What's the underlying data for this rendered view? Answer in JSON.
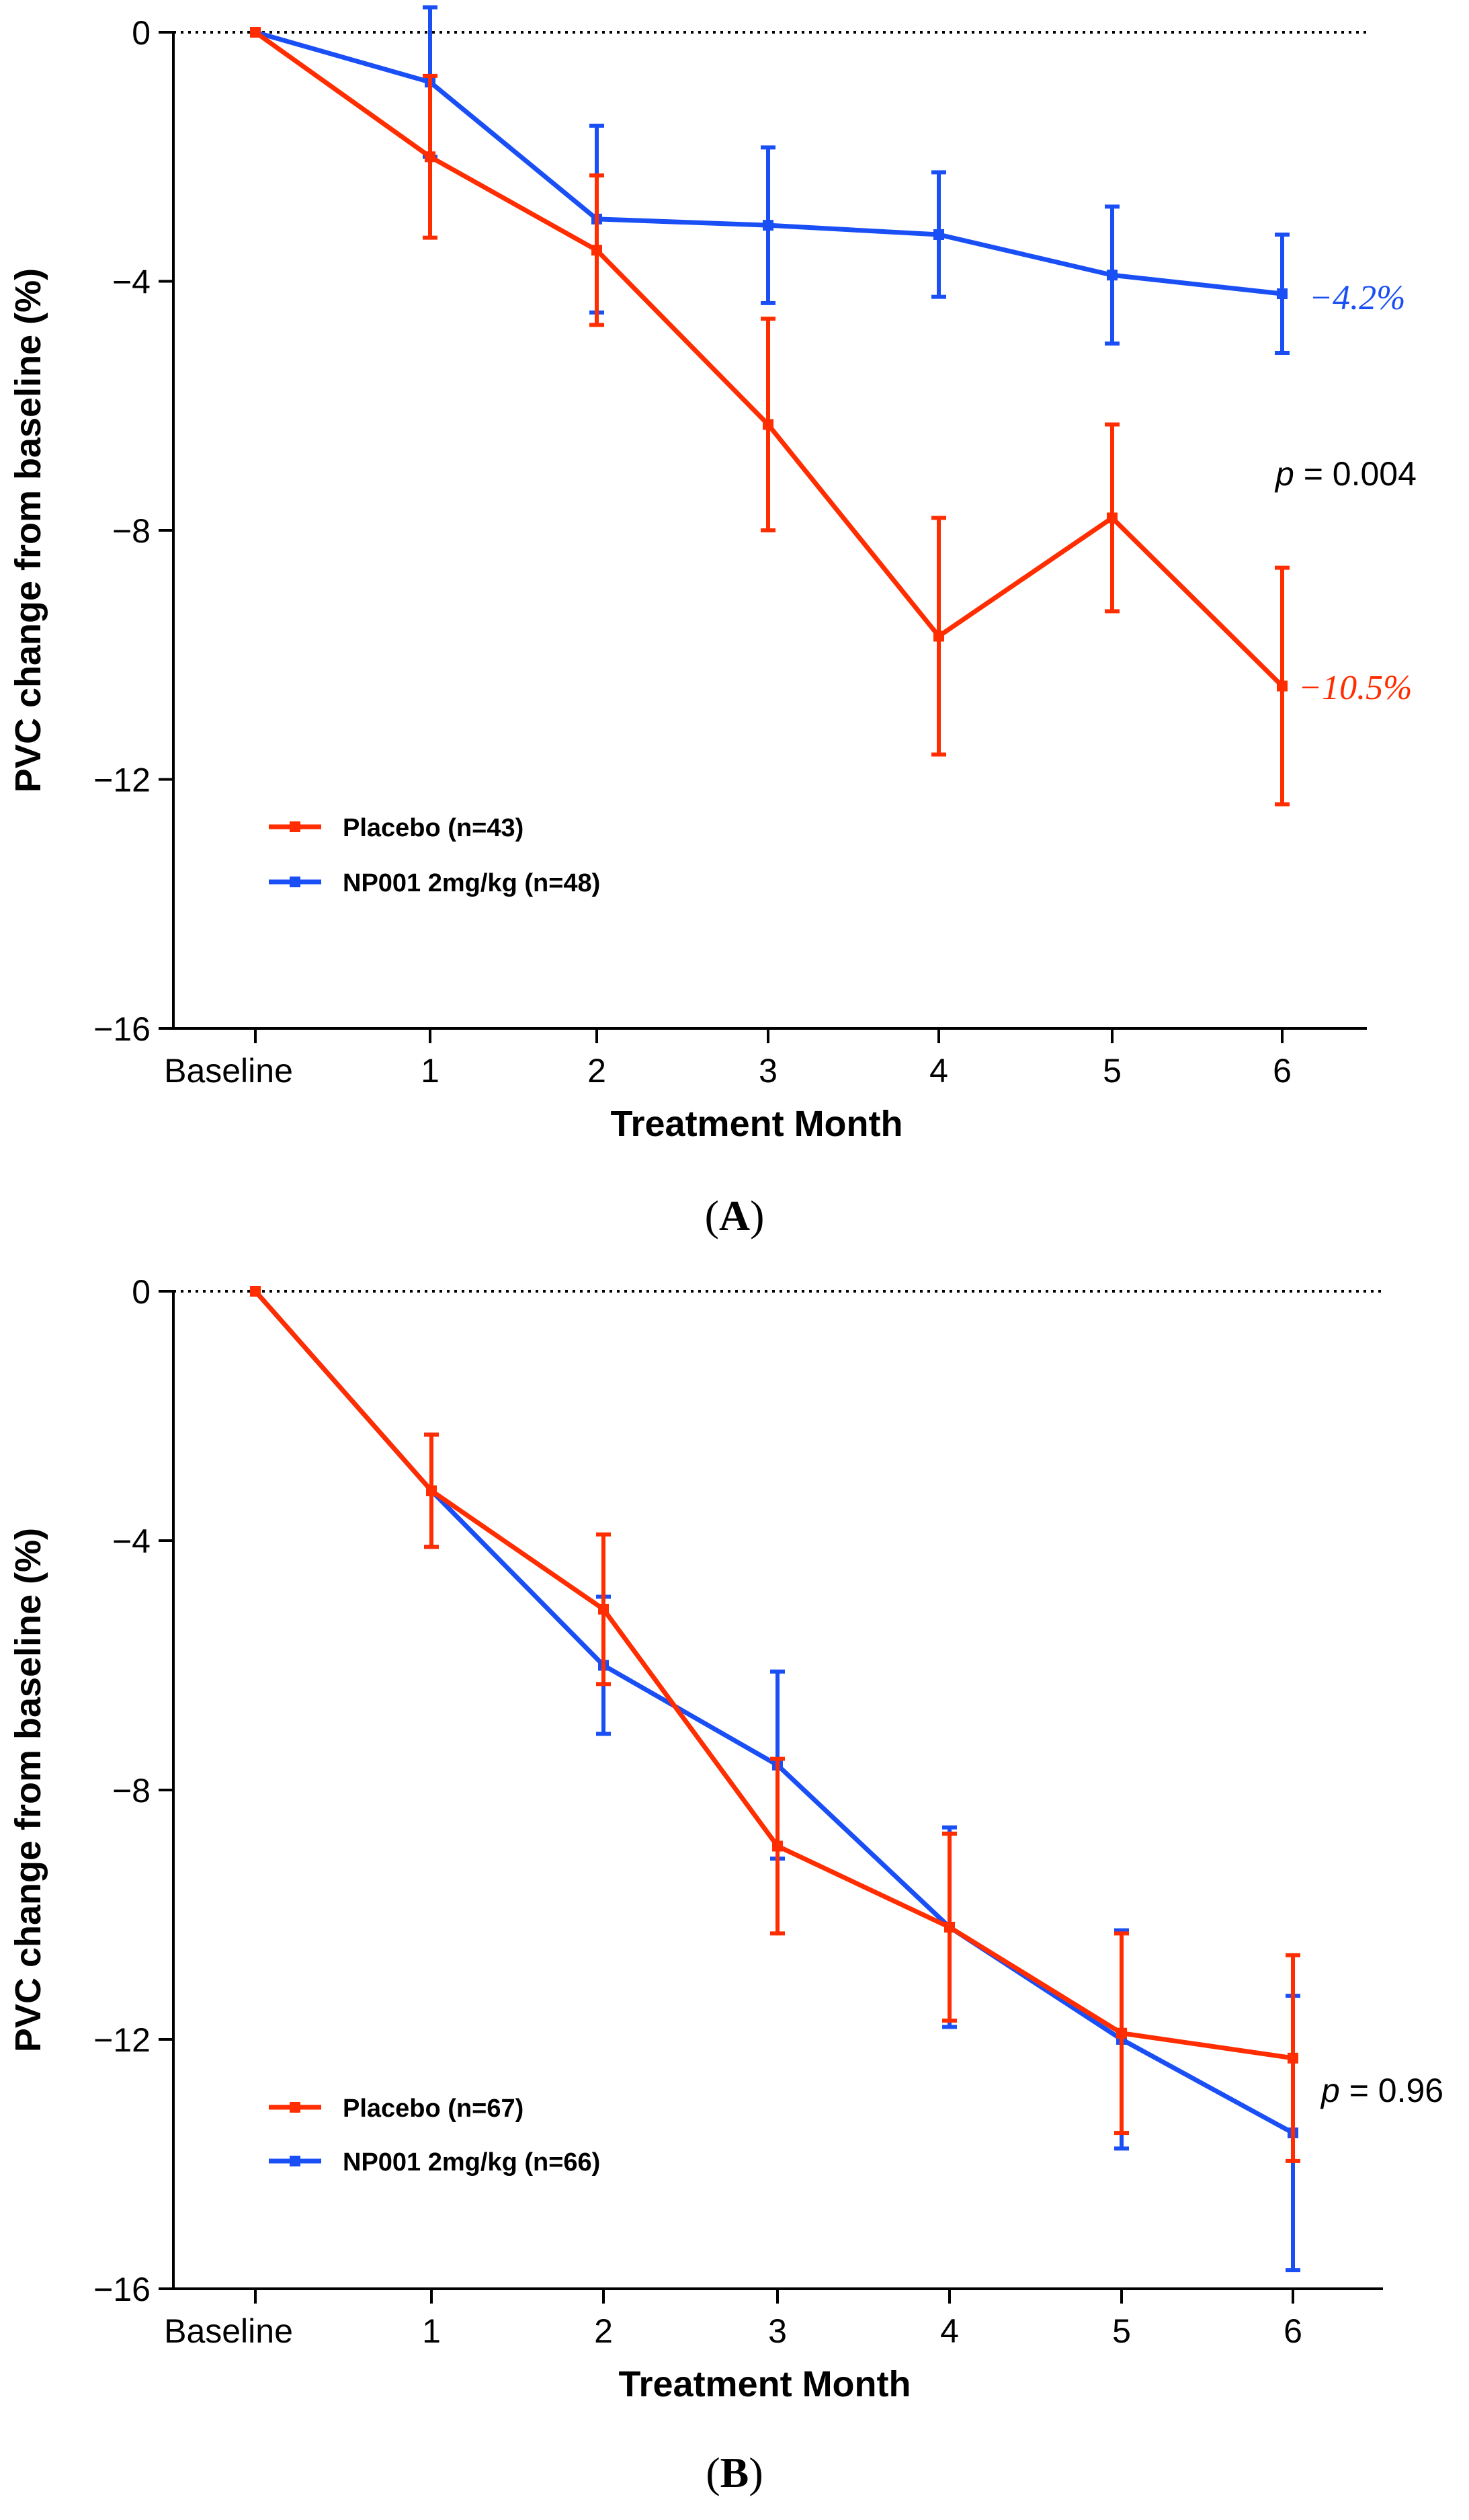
{
  "colors": {
    "placebo": "#ff2d00",
    "np001": "#1a4ff5",
    "axis": "#000000"
  },
  "chart_data": [
    {
      "type": "line",
      "panel_label": "A",
      "title": "",
      "xlabel": "Treatment Month",
      "ylabel": "PVC change from baseline (%)",
      "categories": [
        "Baseline",
        "1",
        "2",
        "3",
        "4",
        "5",
        "6"
      ],
      "ylim": [
        -16,
        0
      ],
      "yticks": [
        0,
        -4,
        -8,
        -12,
        -16
      ],
      "ytick_labels": [
        "0",
        "−4",
        "−8",
        "−12",
        "−16"
      ],
      "reference_line_y": 0,
      "series": [
        {
          "name": "Placebo (n=43)",
          "color_key": "placebo",
          "values": [
            0,
            -2.0,
            -3.5,
            -6.3,
            -9.7,
            -7.8,
            -10.5
          ],
          "error": [
            0,
            1.3,
            1.2,
            1.7,
            1.9,
            1.5,
            1.9
          ]
        },
        {
          "name": "NP001 2mg/kg (n=48)",
          "color_key": "np001",
          "values": [
            0,
            -0.8,
            -3.0,
            -3.1,
            -3.25,
            -3.9,
            -4.2
          ],
          "error": [
            0,
            1.2,
            1.5,
            1.25,
            1.0,
            1.1,
            0.95
          ]
        }
      ],
      "annotations": [
        {
          "text": "−4.2%",
          "series": 1,
          "style": "serif-italic"
        },
        {
          "text": "−10.5%",
          "series": 0,
          "style": "serif-italic"
        },
        {
          "p_label": "p",
          "p_value": " = 0.004",
          "style": "p-value"
        }
      ]
    },
    {
      "type": "line",
      "panel_label": "B",
      "title": "",
      "xlabel": "Treatment Month",
      "ylabel": "PVC change from baseline (%)",
      "categories": [
        "Baseline",
        "1",
        "2",
        "3",
        "4",
        "5",
        "6"
      ],
      "ylim": [
        -16,
        0
      ],
      "yticks": [
        0,
        -4,
        -8,
        -12,
        -16
      ],
      "ytick_labels": [
        "0",
        "−4",
        "−8",
        "−12",
        "−16"
      ],
      "reference_line_y": 0,
      "series": [
        {
          "name": "Placebo (n=67)",
          "color_key": "placebo",
          "values": [
            0,
            -3.2,
            -5.1,
            -8.9,
            -10.2,
            -11.9,
            -12.3
          ],
          "error": [
            0,
            0.9,
            1.2,
            1.4,
            1.5,
            1.6,
            1.65
          ]
        },
        {
          "name": "NP001 2mg/kg (n=66)",
          "color_key": "np001",
          "values": [
            0,
            -3.2,
            -6.0,
            -7.6,
            -10.2,
            -12.0,
            -13.5
          ],
          "error": [
            0,
            0.9,
            1.1,
            1.5,
            1.6,
            1.75,
            2.2
          ]
        }
      ],
      "annotations": [
        {
          "p_label": "p",
          "p_value": " = 0.96",
          "style": "p-value"
        }
      ]
    }
  ]
}
